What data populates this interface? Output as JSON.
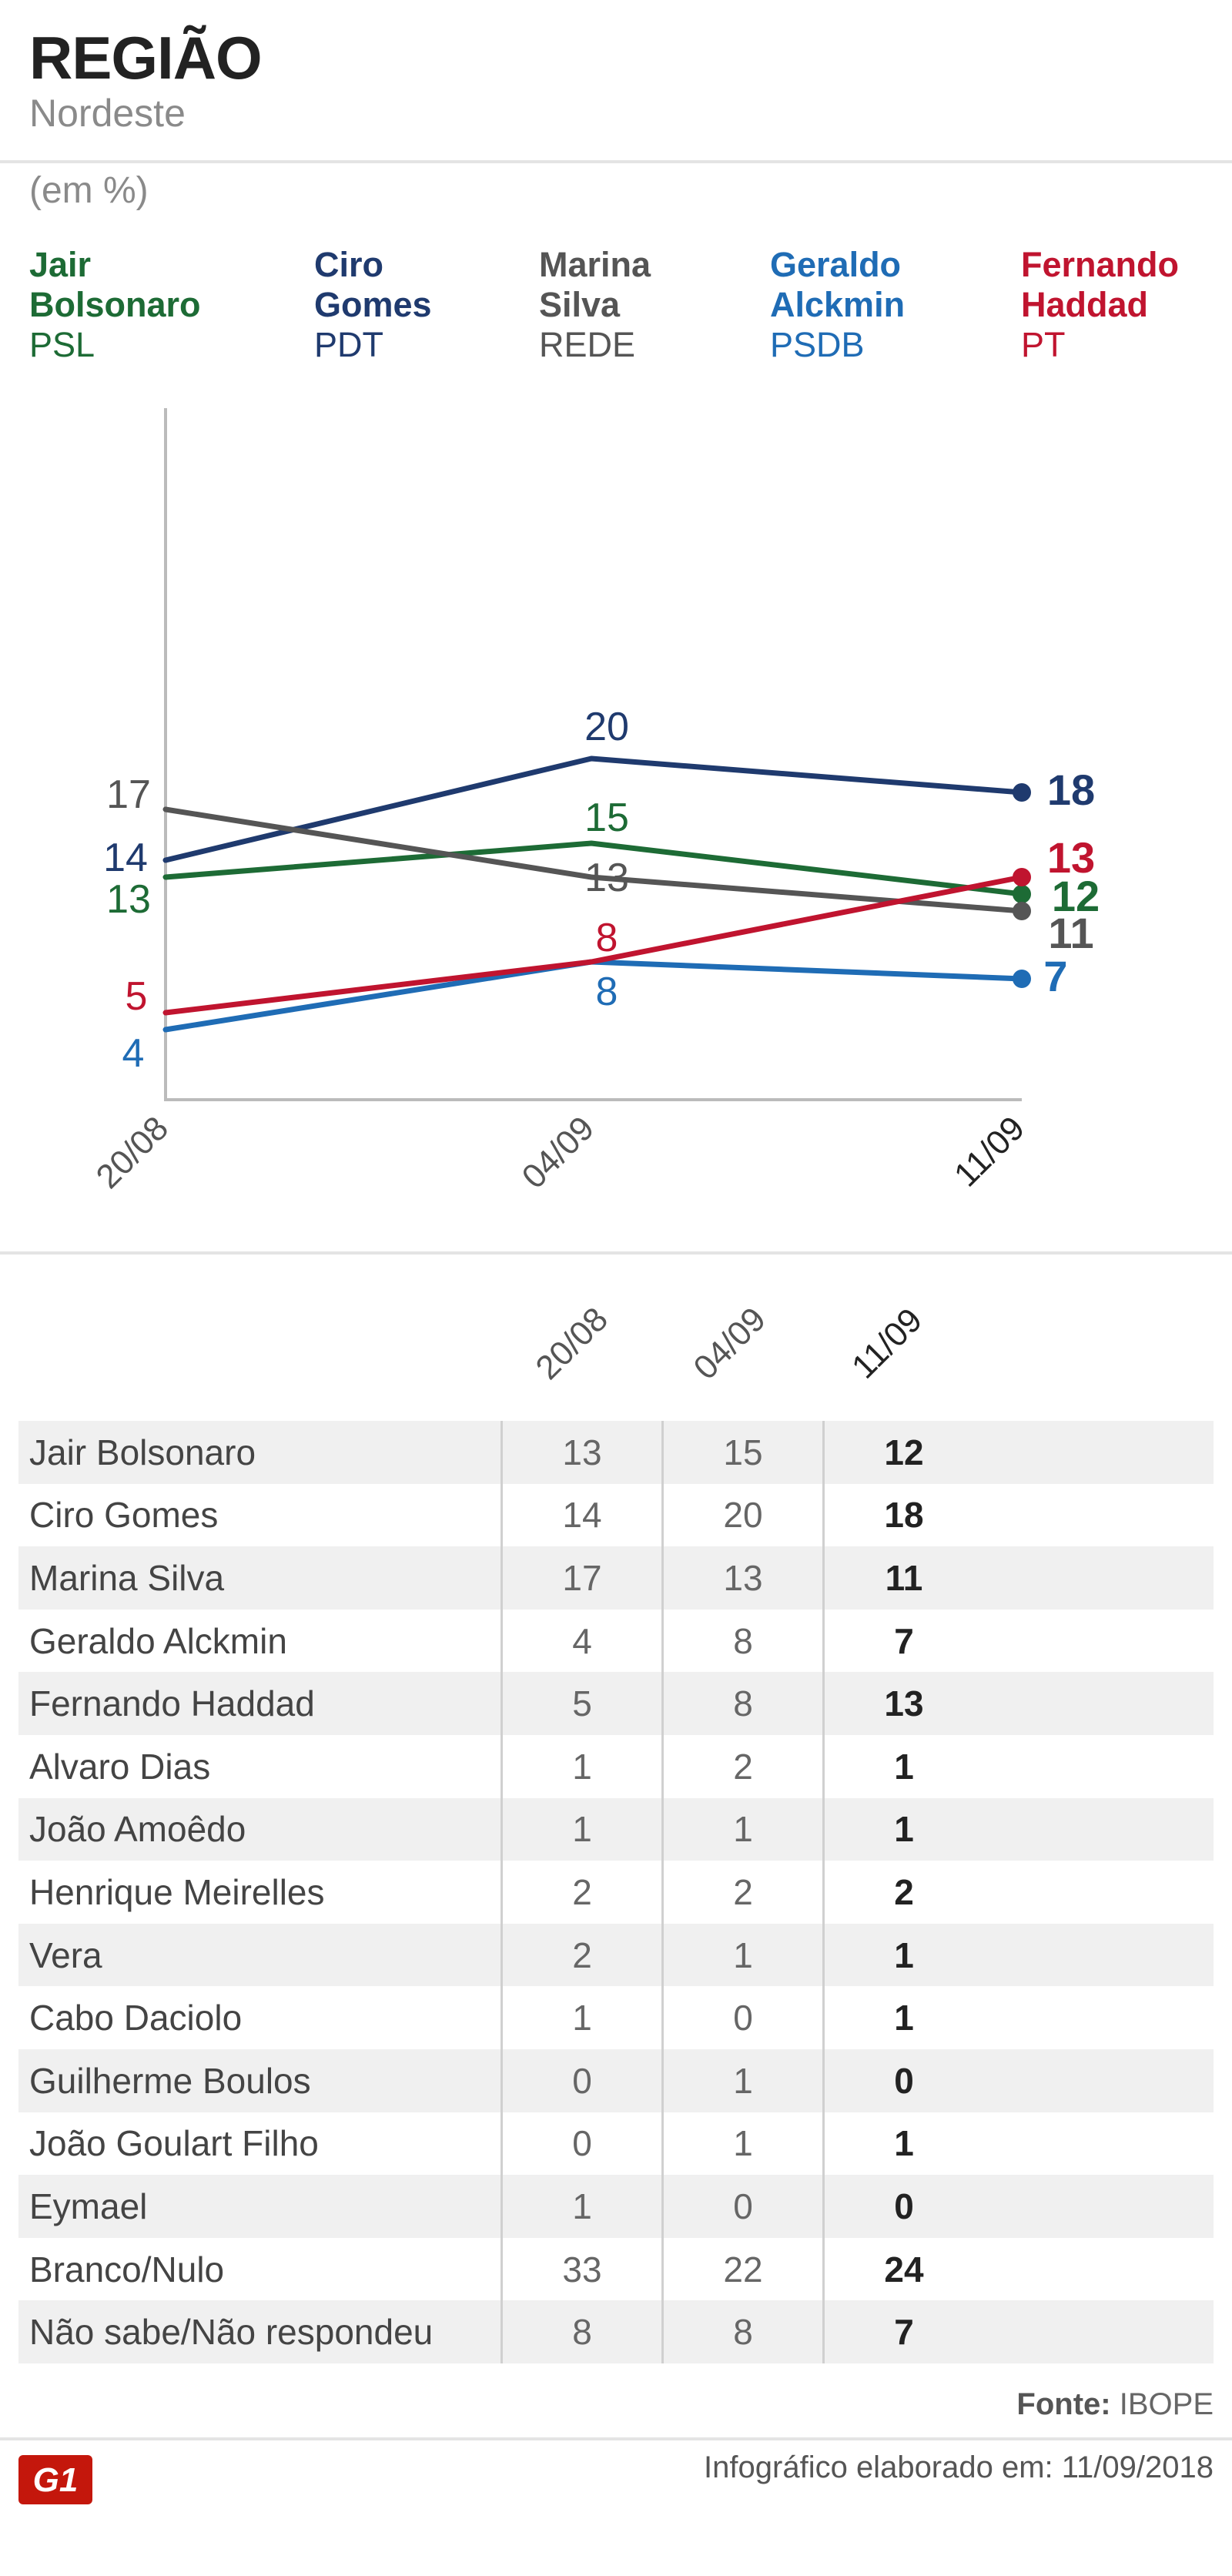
{
  "header": {
    "title": "REGIÃO",
    "subtitle": "Nordeste",
    "unit": "(em %)"
  },
  "legend": [
    {
      "name": "Jair Bolsonaro",
      "lines": [
        "Jair",
        "Bolsonaro"
      ],
      "party": "PSL",
      "color": "#1d6b35"
    },
    {
      "name": "Ciro Gomes",
      "lines": [
        "Ciro",
        "Gomes"
      ],
      "party": "PDT",
      "color": "#1f3a6e"
    },
    {
      "name": "Marina Silva",
      "lines": [
        "Marina",
        "Silva"
      ],
      "party": "REDE",
      "color": "#555555"
    },
    {
      "name": "Geraldo Alckmin",
      "lines": [
        "Geraldo",
        "Alckmin"
      ],
      "party": "PSDB",
      "color": "#1f6cb5"
    },
    {
      "name": "Fernando Haddad",
      "lines": [
        "Fernando",
        "Haddad"
      ],
      "party": "PT",
      "color": "#c0142f"
    }
  ],
  "chart_data": {
    "type": "line",
    "x": [
      "20/08",
      "04/09",
      "11/09"
    ],
    "ylim": [
      0,
      30
    ],
    "grid": false,
    "series": [
      {
        "name": "Jair Bolsonaro",
        "values": [
          13,
          15,
          12
        ],
        "color": "#1d6b35"
      },
      {
        "name": "Ciro Gomes",
        "values": [
          14,
          20,
          18
        ],
        "color": "#1f3a6e"
      },
      {
        "name": "Marina Silva",
        "values": [
          17,
          13,
          11
        ],
        "color": "#555555"
      },
      {
        "name": "Geraldo Alckmin",
        "values": [
          4,
          8,
          7
        ],
        "color": "#1f6cb5"
      },
      {
        "name": "Fernando Haddad",
        "values": [
          5,
          8,
          13
        ],
        "color": "#c0142f"
      }
    ]
  },
  "table": {
    "columns": [
      "20/08",
      "04/09",
      "11/09"
    ],
    "rows": [
      {
        "name": "Jair Bolsonaro",
        "values": [
          "13",
          "15",
          "12"
        ]
      },
      {
        "name": "Ciro Gomes",
        "values": [
          "14",
          "20",
          "18"
        ]
      },
      {
        "name": "Marina Silva",
        "values": [
          "17",
          "13",
          "11"
        ]
      },
      {
        "name": "Geraldo Alckmin",
        "values": [
          "4",
          "8",
          "7"
        ]
      },
      {
        "name": "Fernando Haddad",
        "values": [
          "5",
          "8",
          "13"
        ]
      },
      {
        "name": "Alvaro Dias",
        "values": [
          "1",
          "2",
          "1"
        ]
      },
      {
        "name": "João Amoêdo",
        "values": [
          "1",
          "1",
          "1"
        ]
      },
      {
        "name": "Henrique Meirelles",
        "values": [
          "2",
          "2",
          "2"
        ]
      },
      {
        "name": "Vera",
        "values": [
          "2",
          "1",
          "1"
        ]
      },
      {
        "name": "Cabo Daciolo",
        "values": [
          "1",
          "0",
          "1"
        ]
      },
      {
        "name": "Guilherme Boulos",
        "values": [
          "0",
          "1",
          "0"
        ]
      },
      {
        "name": "João Goulart Filho",
        "values": [
          "0",
          "1",
          "1"
        ]
      },
      {
        "name": "Eymael",
        "values": [
          "1",
          "0",
          "0"
        ]
      },
      {
        "name": "Branco/Nulo",
        "values": [
          "33",
          "22",
          "24"
        ]
      },
      {
        "name": "Não sabe/Não respondeu",
        "values": [
          "8",
          "8",
          "7"
        ]
      }
    ]
  },
  "footer": {
    "source_label": "Fonte:",
    "source": "IBOPE",
    "credit": "Infográfico elaborado em: 11/09/2018",
    "logo_text": "G1",
    "logo_color": "#c4170c"
  }
}
